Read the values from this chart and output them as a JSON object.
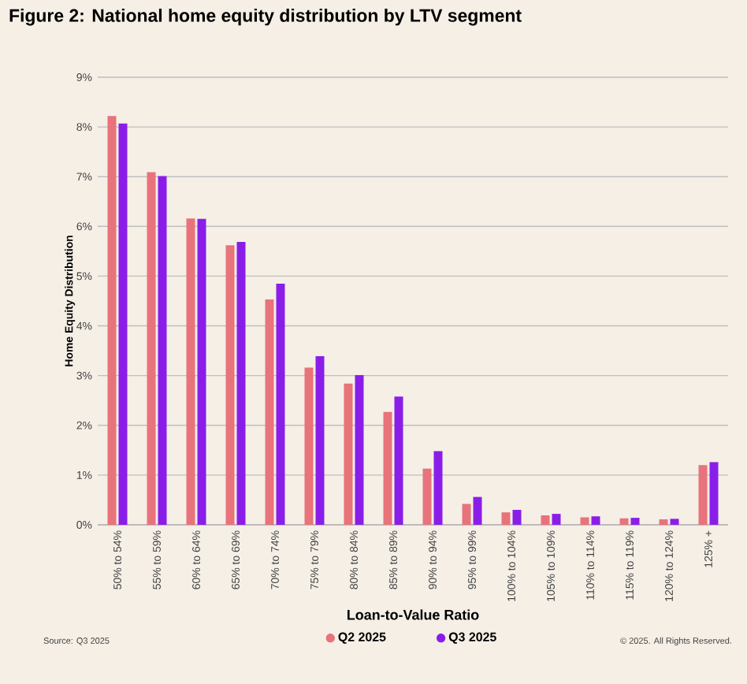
{
  "chart_data": {
    "type": "bar",
    "title": "Figure 2: National home equity distribution by LTV segment",
    "xlabel": "Loan-to-Value Ratio",
    "ylabel": "Home Equity Distribution",
    "categories": [
      "50% to 54%",
      "55% to 59%",
      "60% to 64%",
      "65% to 69%",
      "70% to 74%",
      "75% to 79%",
      "80% to 84%",
      "85% to 89%",
      "90% to 94%",
      "95% to 99%",
      "100% to 104%",
      "105% to 109%",
      "110% to 114%",
      "115% to 119%",
      "120% to 124%",
      "125% +"
    ],
    "series": [
      {
        "name": "Q2 2025",
        "color": "#e8737a",
        "values": [
          8.22,
          7.09,
          6.16,
          5.62,
          4.53,
          3.16,
          2.84,
          2.27,
          1.13,
          0.42,
          0.25,
          0.19,
          0.15,
          0.13,
          0.11,
          1.2
        ]
      },
      {
        "name": "Q3 2025",
        "color": "#8a1ee8",
        "values": [
          8.07,
          7.01,
          6.15,
          5.69,
          4.85,
          3.39,
          3.01,
          2.58,
          1.48,
          0.56,
          0.3,
          0.22,
          0.17,
          0.14,
          0.12,
          1.26
        ]
      }
    ],
    "ylim": [
      0,
      9
    ],
    "yticks": [
      {
        "value": 0,
        "label": "0%"
      },
      {
        "value": 1,
        "label": "1%"
      },
      {
        "value": 2,
        "label": "2%"
      },
      {
        "value": 3,
        "label": "3%"
      },
      {
        "value": 4,
        "label": "4%"
      },
      {
        "value": 5,
        "label": "5%"
      },
      {
        "value": 6,
        "label": "6%"
      },
      {
        "value": 7,
        "label": "7%"
      },
      {
        "value": 8,
        "label": "8%"
      },
      {
        "value": 9,
        "label": "9%"
      }
    ],
    "grid": "y",
    "legend": "bottom",
    "annotations": [
      "Source: Q3 2025",
      "© 2025. All Rights Reserved."
    ]
  }
}
